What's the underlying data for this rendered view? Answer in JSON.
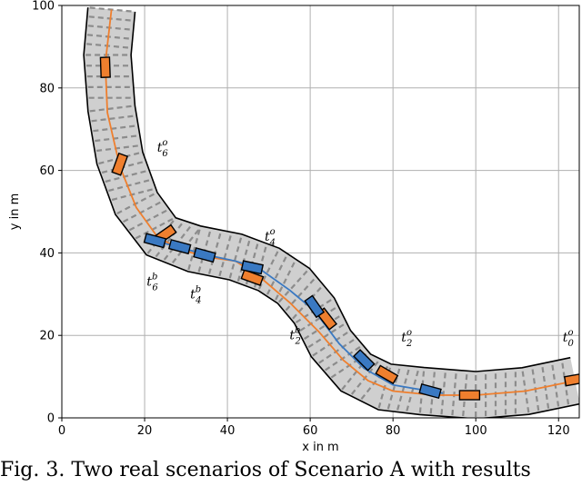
{
  "chart_data": {
    "type": "scatter",
    "xlabel": "x in m",
    "ylabel": "y in m",
    "xlim": [
      0,
      125
    ],
    "ylim": [
      0,
      100
    ],
    "xticks": [
      0,
      20,
      40,
      60,
      80,
      100,
      120
    ],
    "yticks": [
      0,
      20,
      40,
      60,
      80,
      100
    ],
    "grid": true,
    "colors": {
      "road_fill": "#cfcfcf",
      "road_edge": "#000000",
      "lane_mark": "#8c8c8c",
      "orange": "#ef7f2e",
      "blue": "#3a79c2",
      "box_edge": "#000000"
    },
    "road_centerline": [
      [
        12,
        99
      ],
      [
        11,
        88
      ],
      [
        12,
        75
      ],
      [
        14,
        63
      ],
      [
        18,
        52
      ],
      [
        24,
        44
      ],
      [
        32,
        41
      ],
      [
        42,
        39
      ],
      [
        50,
        36
      ],
      [
        56,
        32
      ],
      [
        61,
        26
      ],
      [
        65,
        18
      ],
      [
        71,
        11
      ],
      [
        78,
        7.5
      ],
      [
        87,
        6.5
      ],
      [
        100,
        5.5
      ],
      [
        112,
        6.5
      ],
      [
        124,
        9
      ]
    ],
    "orange_path": [
      [
        12,
        99
      ],
      [
        10.5,
        86
      ],
      [
        11,
        74
      ],
      [
        14,
        61
      ],
      [
        18,
        51
      ],
      [
        23,
        44
      ],
      [
        28,
        41
      ],
      [
        35,
        39
      ],
      [
        42,
        38
      ],
      [
        48,
        34
      ],
      [
        55,
        28
      ],
      [
        62,
        21
      ],
      [
        68,
        14
      ],
      [
        74,
        9
      ],
      [
        80,
        6.5
      ],
      [
        90,
        5.5
      ],
      [
        100,
        5.5
      ],
      [
        112,
        6.5
      ],
      [
        124,
        9
      ]
    ],
    "blue_path": [
      [
        20,
        43.5
      ],
      [
        28,
        41.5
      ],
      [
        35,
        39.5
      ],
      [
        42,
        38
      ],
      [
        48,
        36
      ],
      [
        55,
        31
      ],
      [
        61,
        26
      ],
      [
        67,
        18
      ],
      [
        73,
        12
      ],
      [
        80,
        8
      ],
      [
        87,
        6.8
      ],
      [
        92,
        6
      ]
    ],
    "orange_vehicles": [
      {
        "x": 10.5,
        "y": 85,
        "angle": 92
      },
      {
        "x": 14,
        "y": 61.5,
        "angle": 70
      },
      {
        "x": 25,
        "y": 44.5,
        "angle": 35
      },
      {
        "x": 46,
        "y": 34,
        "angle": -20
      },
      {
        "x": 64,
        "y": 24,
        "angle": -52
      },
      {
        "x": 78.5,
        "y": 10.5,
        "angle": -30
      },
      {
        "x": 98.5,
        "y": 5.5,
        "angle": 0
      },
      {
        "x": 124,
        "y": 9.3,
        "angle": 10
      }
    ],
    "blue_vehicles": [
      {
        "x": 22.5,
        "y": 43,
        "angle": -15
      },
      {
        "x": 28.5,
        "y": 41.5,
        "angle": -15
      },
      {
        "x": 34.5,
        "y": 39.5,
        "angle": -15
      },
      {
        "x": 46,
        "y": 36.5,
        "angle": -12
      },
      {
        "x": 61,
        "y": 27,
        "angle": -55
      },
      {
        "x": 73,
        "y": 14,
        "angle": -45
      },
      {
        "x": 89,
        "y": 6.5,
        "angle": -15
      }
    ],
    "annotations": [
      {
        "base": "t",
        "sup": "o",
        "sub": "6",
        "x": 23,
        "y": 64.5
      },
      {
        "base": "t",
        "sup": "o",
        "sub": "4",
        "x": 49,
        "y": 43
      },
      {
        "base": "t",
        "sup": "b",
        "sub": "6",
        "x": 20.5,
        "y": 32
      },
      {
        "base": "t",
        "sup": "b",
        "sub": "4",
        "x": 31,
        "y": 29
      },
      {
        "base": "t",
        "sup": "b",
        "sub": "2",
        "x": 55,
        "y": 19
      },
      {
        "base": "t",
        "sup": "o",
        "sub": "2",
        "x": 82,
        "y": 18.5
      },
      {
        "base": "t",
        "sup": "o",
        "sub": "0",
        "x": 121,
        "y": 18.5
      }
    ]
  },
  "caption": "Fig. 3.  Two real scenarios of Scenario A with results"
}
